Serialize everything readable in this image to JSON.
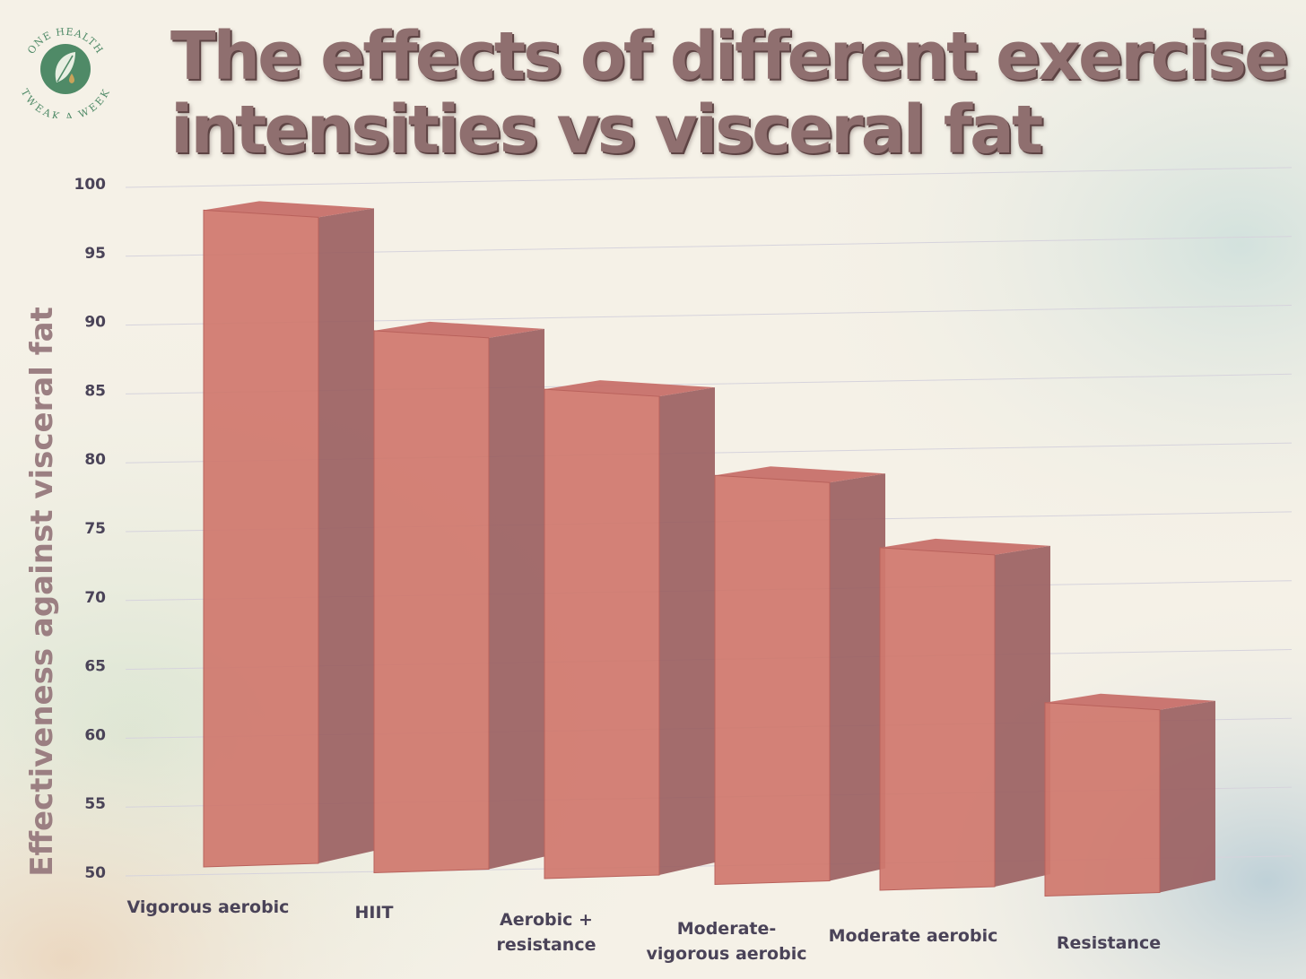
{
  "logo": {
    "top_text": "ONE HEALTH",
    "bottom_text": "TWEAK A WEEK",
    "icon": "leaf-drop-icon"
  },
  "chart_data": {
    "type": "bar",
    "title_lines": [
      "The effects of different exercise",
      "intensities vs visceral fat"
    ],
    "ylabel": "Effectiveness against visceral fat",
    "xlabel": "",
    "categories": [
      [
        "Vigorous aerobic"
      ],
      [
        "HIIT"
      ],
      [
        "Aerobic +",
        "resistance"
      ],
      [
        "Moderate-",
        "vigorous aerobic"
      ],
      [
        "Moderate aerobic"
      ],
      [
        "Resistance"
      ]
    ],
    "values": [
      99,
      90.5,
      86.5,
      80.5,
      75.5,
      64.5
    ],
    "ylim": [
      50,
      100
    ],
    "yticks": [
      100,
      95,
      90,
      85,
      80,
      75,
      70,
      65,
      60,
      55,
      50
    ],
    "grid": true,
    "legend": "none",
    "bar_color": "#d0786e",
    "bar_side_color": "#9b6162"
  }
}
